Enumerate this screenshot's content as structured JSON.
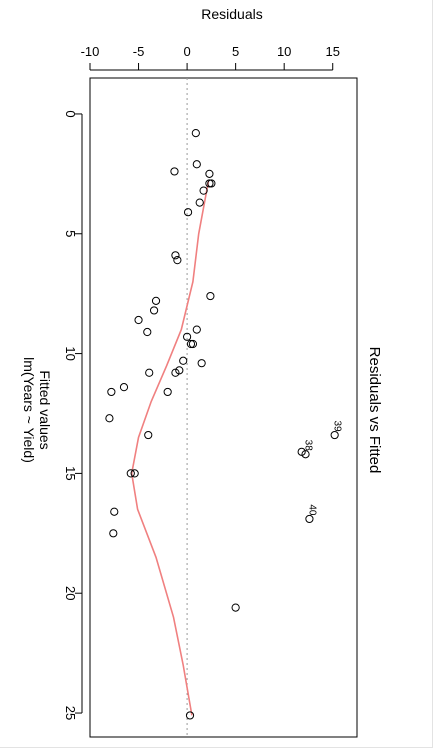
{
  "chart_data": {
    "type": "scatter",
    "title": "Residuals vs Fitted",
    "xlabel": "Fitted values",
    "xlabel_sub": "lm(Years ~ Yield)",
    "ylabel": "Residuals",
    "orientation": "rotated 90° clockwise",
    "xlim": [
      -1.5,
      26
    ],
    "ylim": [
      -10,
      17.5
    ],
    "x_ticks": [
      "0",
      "5",
      "10",
      "15",
      "20",
      "25"
    ],
    "y_ticks": [
      "-10",
      "-5",
      "0",
      "5",
      "10",
      "15"
    ],
    "zero_line": true,
    "points": [
      {
        "x": 2.9,
        "y": 2.3
      },
      {
        "x": 2.9,
        "y": 2.5
      },
      {
        "x": 0.8,
        "y": 0.9
      },
      {
        "x": 2.1,
        "y": 1.0
      },
      {
        "x": 2.4,
        "y": -1.3
      },
      {
        "x": 2.5,
        "y": 2.3
      },
      {
        "x": 3.2,
        "y": 1.7
      },
      {
        "x": 3.7,
        "y": 1.3
      },
      {
        "x": 4.1,
        "y": 0.1
      },
      {
        "x": 5.9,
        "y": -1.2
      },
      {
        "x": 6.1,
        "y": -1.0
      },
      {
        "x": 7.6,
        "y": 2.4
      },
      {
        "x": 7.8,
        "y": -3.2
      },
      {
        "x": 8.2,
        "y": -3.4
      },
      {
        "x": 8.6,
        "y": -5.0
      },
      {
        "x": 9.0,
        "y": 1.0
      },
      {
        "x": 9.1,
        "y": -4.1
      },
      {
        "x": 9.3,
        "y": 0.0
      },
      {
        "x": 9.6,
        "y": 0.4
      },
      {
        "x": 9.6,
        "y": 0.6
      },
      {
        "x": 10.3,
        "y": -0.4
      },
      {
        "x": 10.4,
        "y": 1.5
      },
      {
        "x": 10.7,
        "y": -0.8
      },
      {
        "x": 10.8,
        "y": -1.2
      },
      {
        "x": 10.8,
        "y": -3.9
      },
      {
        "x": 11.4,
        "y": -6.5
      },
      {
        "x": 11.6,
        "y": -2.0
      },
      {
        "x": 11.6,
        "y": -7.8
      },
      {
        "x": 12.7,
        "y": -8.0
      },
      {
        "x": 13.4,
        "y": -4.0
      },
      {
        "x": 15.0,
        "y": -5.8
      },
      {
        "x": 15.0,
        "y": -5.4
      },
      {
        "x": 16.6,
        "y": -7.5
      },
      {
        "x": 17.5,
        "y": -7.6
      },
      {
        "x": 20.6,
        "y": 5.0
      },
      {
        "x": 25.1,
        "y": 0.3
      },
      {
        "x": 13.4,
        "y": 15.2,
        "label": "39"
      },
      {
        "x": 14.2,
        "y": 12.2,
        "label": "38"
      },
      {
        "x": 14.1,
        "y": 11.8
      },
      {
        "x": 16.9,
        "y": 12.6,
        "label": "40"
      }
    ],
    "smoother": [
      {
        "x": 2.8,
        "y": 2.2
      },
      {
        "x": 5.0,
        "y": 1.2
      },
      {
        "x": 7.0,
        "y": 0.6
      },
      {
        "x": 9.0,
        "y": -0.6
      },
      {
        "x": 10.5,
        "y": -2.1
      },
      {
        "x": 12.0,
        "y": -3.7
      },
      {
        "x": 13.5,
        "y": -5.0
      },
      {
        "x": 15.0,
        "y": -5.7
      },
      {
        "x": 16.5,
        "y": -5.1
      },
      {
        "x": 18.5,
        "y": -3.2
      },
      {
        "x": 21.0,
        "y": -1.4
      },
      {
        "x": 23.0,
        "y": -0.4
      },
      {
        "x": 25.1,
        "y": 0.5
      }
    ],
    "colors": {
      "points": "#000000",
      "smoother": "#f08080",
      "zero_line": "#999999",
      "frame": "#000000"
    }
  }
}
